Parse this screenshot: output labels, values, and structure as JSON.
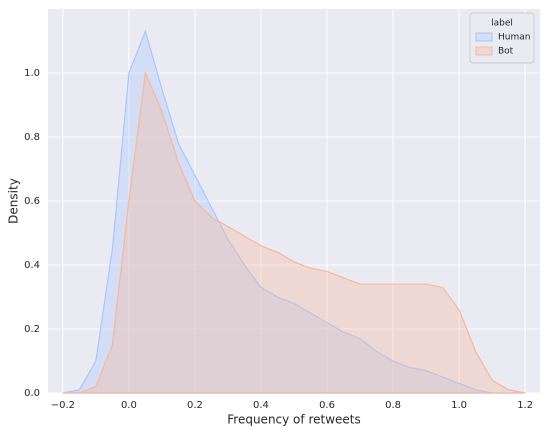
{
  "chart_data": {
    "type": "area",
    "x_label": "Frequency of retweets",
    "y_label": "Density",
    "x": [
      -0.2,
      -0.15,
      -0.1,
      -0.05,
      0,
      0.05,
      0.1,
      0.15,
      0.2,
      0.25,
      0.3,
      0.35,
      0.4,
      0.45,
      0.5,
      0.55,
      0.6,
      0.65,
      0.7,
      0.75,
      0.8,
      0.85,
      0.9,
      0.95,
      1.0,
      1.05,
      1.1,
      1.15,
      1.2
    ],
    "series": [
      {
        "name": "Human",
        "color": "#aac7fd",
        "values": [
          0,
          0.01,
          0.1,
          0.45,
          1.0,
          1.13,
          0.95,
          0.78,
          0.68,
          0.58,
          0.48,
          0.4,
          0.33,
          0.3,
          0.28,
          0.25,
          0.22,
          0.19,
          0.17,
          0.13,
          0.1,
          0.08,
          0.07,
          0.05,
          0.03,
          0.01,
          0,
          0,
          0
        ]
      },
      {
        "name": "Bot",
        "color": "#f7b89c",
        "values": [
          0,
          0,
          0.02,
          0.15,
          0.6,
          1.0,
          0.88,
          0.72,
          0.6,
          0.55,
          0.52,
          0.49,
          0.46,
          0.44,
          0.41,
          0.39,
          0.38,
          0.36,
          0.34,
          0.34,
          0.34,
          0.34,
          0.34,
          0.33,
          0.26,
          0.13,
          0.04,
          0.01,
          0
        ]
      }
    ],
    "legend_title": "label",
    "legend_position": "upper right",
    "grid": true,
    "xlim": [
      -0.245,
      1.245
    ],
    "xticks": [
      {
        "value": -0.2,
        "label": "−0.2"
      },
      {
        "value": 0,
        "label": "0.0"
      },
      0.2,
      0.4,
      0.6,
      0.8,
      {
        "value": 1,
        "label": "1.0"
      },
      1.2
    ],
    "ylim": [
      0,
      1.2
    ],
    "yticks": [
      {
        "value": 0,
        "label": "0.0"
      },
      0.2,
      0.4,
      0.6,
      0.8,
      {
        "value": 1,
        "label": "1.0"
      }
    ]
  }
}
